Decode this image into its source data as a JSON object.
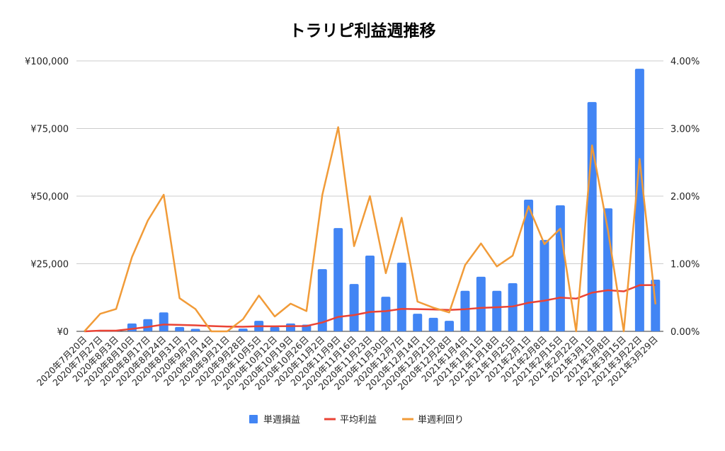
{
  "chart_data": {
    "type": "bar",
    "title": "トラリピ利益週推移",
    "categories": [
      "2020年7月20日",
      "2020年7月27日",
      "2020年8月3日",
      "2020年8月10日",
      "2020年8月17日",
      "2020年8月24日",
      "2020年8月31日",
      "2020年9月7日",
      "2020年9月14日",
      "2020年9月21日",
      "2020年9月28日",
      "2020年10月5日",
      "2020年10月12日",
      "2020年10月19日",
      "2020年10月26日",
      "2020年11月2日",
      "2020年11月9日",
      "2020年11月16日",
      "2020年11月23日",
      "2020年11月30日",
      "2020年12月7日",
      "2020年12月14日",
      "2020年12月21日",
      "2020年12月28日",
      "2021年1月4日",
      "2021年1月11日",
      "2021年1月18日",
      "2021年1月25日",
      "2021年2月1日",
      "2021年2月8日",
      "2021年2月15日",
      "2021年2月22日",
      "2021年3月1日",
      "2021年3月8日",
      "2021年3月15日",
      "2021年3月22日",
      "2021年3月29日"
    ],
    "series": [
      {
        "name": "単週損益",
        "type": "bar",
        "axis": "left",
        "color": "#4285f4",
        "values": [
          0,
          500,
          300,
          2900,
          4500,
          7000,
          1600,
          900,
          0,
          0,
          1000,
          3900,
          1600,
          2900,
          2500,
          23000,
          38200,
          17500,
          28000,
          12800,
          25400,
          6500,
          5000,
          3900,
          15000,
          20200,
          15000,
          17800,
          48700,
          33800,
          46600,
          0,
          84800,
          45500,
          0,
          97100,
          19100
        ]
      },
      {
        "name": "平均利益",
        "type": "line",
        "axis": "left",
        "color": "#ea4335",
        "values": [
          0,
          250,
          267,
          925,
          1640,
          2533,
          2400,
          2213,
          1967,
          1770,
          1700,
          1883,
          1862,
          1936,
          1973,
          3288,
          5341,
          6017,
          7174,
          7455,
          8310,
          8227,
          8087,
          7913,
          8196,
          8658,
          8893,
          9211,
          10572,
          11347,
          12484,
          12094,
          14297,
          15215,
          14780,
          17067,
          17122
        ]
      },
      {
        "name": "単週利回り",
        "type": "line",
        "axis": "right",
        "color": "#f19b38",
        "values": [
          0,
          0.26,
          0.33,
          1.1,
          1.64,
          2.02,
          0.49,
          0.33,
          0,
          0,
          0.18,
          0.53,
          0.22,
          0.41,
          0.3,
          2.02,
          3.02,
          1.26,
          2.0,
          0.86,
          1.68,
          0.44,
          0.35,
          0.28,
          0.98,
          1.3,
          0.96,
          1.12,
          1.85,
          1.29,
          1.52,
          0,
          2.75,
          1.5,
          0,
          2.55,
          0.4
        ]
      }
    ],
    "ylim_left": [
      0,
      100000
    ],
    "ylim_right": [
      0,
      4
    ],
    "yticks_left": [
      "¥0",
      "¥25,000",
      "¥50,000",
      "¥75,000",
      "¥100,000"
    ],
    "yticks_right": [
      "0.00%",
      "1.00%",
      "2.00%",
      "3.00%",
      "4.00%"
    ],
    "xlabel": "",
    "ylabel": "",
    "grid": true,
    "legend_position": "bottom"
  }
}
